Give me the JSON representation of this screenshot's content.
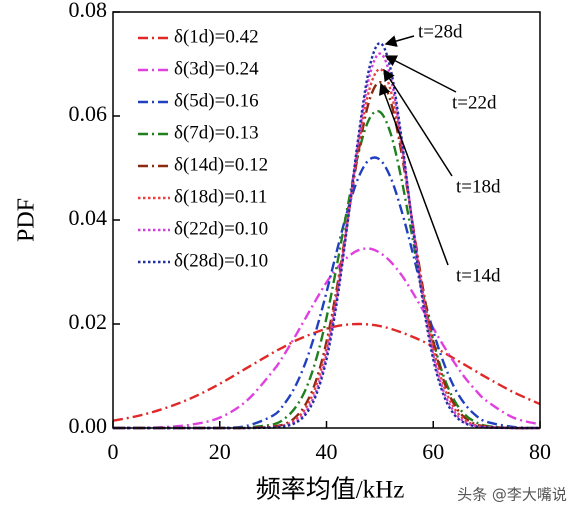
{
  "chart_data": {
    "type": "line",
    "x_label": "频率均值/kHz",
    "y_label": "PDF",
    "x": [
      0,
      5,
      10,
      15,
      20,
      25,
      30,
      32,
      34,
      36,
      38,
      40,
      42,
      44,
      46,
      48,
      50,
      52,
      54,
      56,
      58,
      60,
      62,
      64,
      66,
      68,
      70,
      75,
      80
    ],
    "xlim": [
      0,
      80
    ],
    "xticks": [
      0,
      20,
      40,
      60,
      80
    ],
    "ylim": [
      0,
      0.08
    ],
    "yticks": [
      {
        "value": 0,
        "label": "0.00"
      },
      0.02,
      0.04,
      0.06,
      0.08
    ],
    "series": [
      {
        "name": "δ(1d)=0.42",
        "color": "#e02828",
        "dash": "dashdot",
        "values": [
          0.0014,
          0.0024,
          0.0039,
          0.0059,
          0.0085,
          0.0115,
          0.0145,
          0.0156,
          0.0167,
          0.0176,
          0.0184,
          0.0191,
          0.0196,
          0.0199,
          0.02,
          0.0199,
          0.0196,
          0.0191,
          0.0184,
          0.0176,
          0.0167,
          0.0156,
          0.0145,
          0.0133,
          0.0121,
          0.0109,
          0.0097,
          0.0069,
          0.0046
        ]
      },
      {
        "name": "δ(3d)=0.24",
        "color": "#e040e0",
        "dash": "dashdot",
        "values": [
          0.0,
          0.0,
          0.0002,
          0.0007,
          0.002,
          0.0052,
          0.011,
          0.014,
          0.0174,
          0.021,
          0.0246,
          0.028,
          0.0308,
          0.0329,
          0.0342,
          0.0345,
          0.0337,
          0.032,
          0.0295,
          0.0263,
          0.0228,
          0.0192,
          0.0157,
          0.0125,
          0.0096,
          0.0072,
          0.0052,
          0.002,
          0.0007
        ]
      },
      {
        "name": "δ(5d)=0.16",
        "color": "#2040c0",
        "dash": "dashdot",
        "values": [
          0.0,
          0.0,
          0.0,
          0.0,
          0.0,
          0.0004,
          0.0024,
          0.0045,
          0.0077,
          0.0124,
          0.0186,
          0.0261,
          0.0343,
          0.042,
          0.0482,
          0.0516,
          0.0516,
          0.0482,
          0.042,
          0.0343,
          0.0261,
          0.0186,
          0.0124,
          0.0077,
          0.0045,
          0.0024,
          0.0012,
          0.0002,
          0.0
        ]
      },
      {
        "name": "δ(7d)=0.13",
        "color": "#208020",
        "dash": "dashdot",
        "values": [
          0.0,
          0.0,
          0.0,
          0.0,
          0.0,
          0.0001,
          0.0007,
          0.0017,
          0.0037,
          0.0072,
          0.013,
          0.0212,
          0.0316,
          0.0428,
          0.0529,
          0.0594,
          0.0608,
          0.0567,
          0.0481,
          0.0372,
          0.0262,
          0.0168,
          0.0098,
          0.0052,
          0.0025,
          0.0011,
          0.0004,
          0.0,
          0.0
        ]
      },
      {
        "name": "δ(14d)=0.12",
        "color": "#8b2a10",
        "dash": "dashdot",
        "values": [
          0.0,
          0.0,
          0.0,
          0.0,
          0.0,
          0.0,
          0.0003,
          0.0007,
          0.0019,
          0.0044,
          0.009,
          0.0166,
          0.0273,
          0.0403,
          0.0532,
          0.0629,
          0.0665,
          0.0629,
          0.0532,
          0.0403,
          0.0273,
          0.0166,
          0.009,
          0.0044,
          0.0019,
          0.0007,
          0.0003,
          0.0,
          0.0
        ]
      },
      {
        "name": "δ(18d)=0.11",
        "color": "#e84040",
        "dash": "dot",
        "values": [
          0.0,
          0.0,
          0.0,
          0.0,
          0.0,
          0.0,
          0.0002,
          0.0005,
          0.0015,
          0.0037,
          0.008,
          0.0154,
          0.0265,
          0.0403,
          0.0543,
          0.065,
          0.069,
          0.065,
          0.0543,
          0.0403,
          0.0265,
          0.0154,
          0.008,
          0.0037,
          0.0015,
          0.0005,
          0.0002,
          0.0,
          0.0
        ]
      },
      {
        "name": "δ(22d)=0.10",
        "color": "#d040d8",
        "dash": "dot",
        "values": [
          0.0,
          0.0,
          0.0,
          0.0,
          0.0,
          0.0,
          0.0001,
          0.0004,
          0.0011,
          0.003,
          0.0069,
          0.0141,
          0.0254,
          0.0401,
          0.0555,
          0.0675,
          0.072,
          0.0675,
          0.0555,
          0.0401,
          0.0254,
          0.0141,
          0.0069,
          0.003,
          0.0011,
          0.0004,
          0.0001,
          0.0,
          0.0
        ]
      },
      {
        "name": "δ(28d)=0.10",
        "color": "#2030a0",
        "dash": "dot",
        "values": [
          0.0,
          0.0,
          0.0,
          0.0,
          0.0,
          0.0,
          0.0001,
          0.0003,
          0.0009,
          0.0025,
          0.0062,
          0.0132,
          0.0246,
          0.0398,
          0.0562,
          0.0691,
          0.074,
          0.0691,
          0.0562,
          0.0398,
          0.0246,
          0.0132,
          0.0062,
          0.0025,
          0.0009,
          0.0003,
          0.0001,
          0.0,
          0.0
        ]
      }
    ],
    "annotations": [
      "t=28d",
      "t=22d",
      "t=18d",
      "t=14d"
    ],
    "watermark": "头条 @李大嘴说"
  }
}
